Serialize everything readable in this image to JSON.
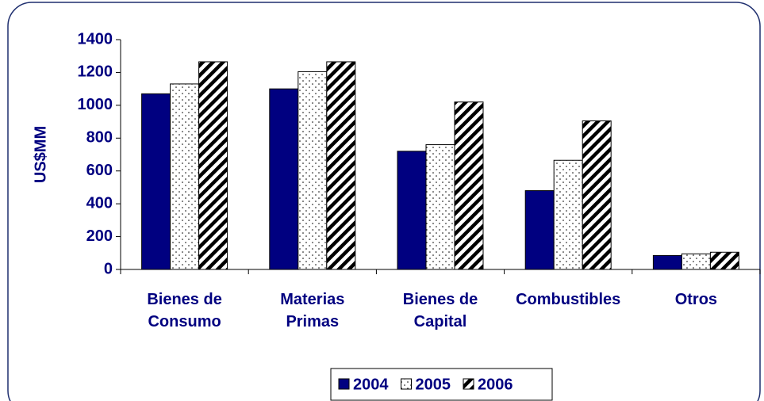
{
  "chart_data": {
    "type": "bar",
    "y_label": "US$MM",
    "categories": [
      "Bienes de Consumo",
      "Materias Primas",
      "Bienes de Capital",
      "Combustibles",
      "Otros"
    ],
    "series": [
      {
        "name": "2004",
        "color": "#000080",
        "fill_pattern": "solid",
        "values": [
          1070,
          1100,
          720,
          480,
          85
        ]
      },
      {
        "name": "2005",
        "color": "#000000",
        "fill_pattern": "dots",
        "values": [
          1130,
          1205,
          760,
          665,
          95
        ]
      },
      {
        "name": "2006",
        "color": "#000000",
        "fill_pattern": "diagonal",
        "values": [
          1265,
          1265,
          1020,
          905,
          105
        ]
      }
    ],
    "ylim": [
      0,
      1400
    ],
    "yticks": [
      0,
      200,
      400,
      600,
      800,
      1000,
      1200,
      1400
    ],
    "grid": false,
    "legend": "bottom"
  }
}
